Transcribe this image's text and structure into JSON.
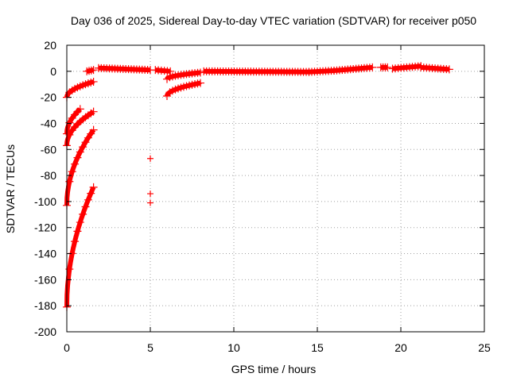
{
  "chart_data": {
    "type": "scatter",
    "title": "Day 036 of 2025, Sidereal Day-to-day VTEC variation (SDTVAR) for receiver p050",
    "xlabel": "GPS time / hours",
    "ylabel": "SDTVAR / TECUs",
    "xlim": [
      0,
      25
    ],
    "ylim": [
      -200,
      20
    ],
    "xticks": [
      "0",
      "5",
      "10",
      "15",
      "20",
      "25"
    ],
    "yticks": [
      "20",
      "0",
      "-20",
      "-40",
      "-60",
      "-80",
      "-100",
      "-120",
      "-140",
      "-160",
      "-180",
      "-200"
    ],
    "grid": true,
    "marker": "+",
    "marker_color": "#ff0000",
    "series": [
      {
        "name": "SDTVAR",
        "segments": [
          {
            "x0": 0.0,
            "x1": 1.6,
            "y0": -20,
            "y1": -8,
            "shape": "curve"
          },
          {
            "x0": 0.0,
            "x1": 0.8,
            "y0": -48,
            "y1": -29,
            "shape": "curve"
          },
          {
            "x0": 0.0,
            "x1": 1.6,
            "y0": -57,
            "y1": -31,
            "shape": "curve"
          },
          {
            "x0": 0.0,
            "x1": 1.6,
            "y0": -103,
            "y1": -45,
            "shape": "curve"
          },
          {
            "x0": 0.0,
            "x1": 1.6,
            "y0": -181,
            "y1": -89,
            "shape": "curve"
          },
          {
            "x0": 1.2,
            "x1": 1.6,
            "y0": 0,
            "y1": 1,
            "shape": "line"
          },
          {
            "x0": 1.9,
            "x1": 5.0,
            "y0": 2.5,
            "y1": 1,
            "shape": "line"
          },
          {
            "x0": 5.3,
            "x1": 6.2,
            "y0": 1,
            "y1": 0,
            "shape": "line"
          },
          {
            "x0": 6.0,
            "x1": 8.0,
            "y0": -6,
            "y1": -1,
            "shape": "curve"
          },
          {
            "x0": 6.0,
            "x1": 8.0,
            "y0": -19,
            "y1": -9,
            "shape": "curve"
          },
          {
            "x0": 8.2,
            "x1": 14.5,
            "y0": 0,
            "y1": -0.5,
            "shape": "line"
          },
          {
            "x0": 14.5,
            "x1": 16.0,
            "y0": -0.5,
            "y1": 0.5,
            "shape": "line"
          },
          {
            "x0": 16.0,
            "x1": 18.3,
            "y0": 0.5,
            "y1": 3,
            "shape": "line"
          },
          {
            "x0": 18.8,
            "x1": 19.2,
            "y0": 3,
            "y1": 3,
            "shape": "line"
          },
          {
            "x0": 19.5,
            "x1": 21.2,
            "y0": 2,
            "y1": 4,
            "shape": "line"
          },
          {
            "x0": 21.2,
            "x1": 22.9,
            "y0": 3,
            "y1": 1.5,
            "shape": "line"
          }
        ],
        "points": [
          {
            "x": 5.0,
            "y": -67
          },
          {
            "x": 5.0,
            "y": -94
          },
          {
            "x": 5.0,
            "y": -101
          }
        ]
      }
    ]
  }
}
